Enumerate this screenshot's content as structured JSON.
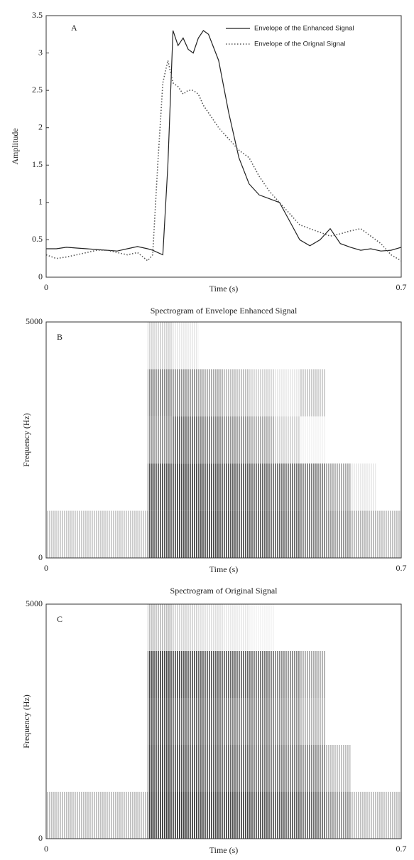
{
  "chart_data": [
    {
      "type": "line",
      "annotation": "A",
      "xlabel": "Time (s)",
      "ylabel": "Amplitude",
      "xlim": [
        0,
        0.7
      ],
      "ylim": [
        0,
        3.5
      ],
      "xticks": [
        0,
        0.7
      ],
      "yticks": [
        0,
        0.5,
        1,
        1.5,
        2,
        2.5,
        3,
        3.5
      ],
      "legend": "upper right",
      "x": [
        0,
        0.02,
        0.04,
        0.06,
        0.08,
        0.1,
        0.12,
        0.14,
        0.16,
        0.18,
        0.2,
        0.21,
        0.22,
        0.23,
        0.24,
        0.25,
        0.26,
        0.27,
        0.28,
        0.29,
        0.3,
        0.31,
        0.32,
        0.34,
        0.36,
        0.38,
        0.4,
        0.42,
        0.44,
        0.46,
        0.48,
        0.5,
        0.52,
        0.54,
        0.56,
        0.58,
        0.6,
        0.62,
        0.64,
        0.66,
        0.68,
        0.7
      ],
      "series": [
        {
          "name": "Envelope of the Enhanced Signal",
          "color": "#222222",
          "dash": "solid",
          "values": [
            0.38,
            0.38,
            0.4,
            0.39,
            0.38,
            0.37,
            0.36,
            0.35,
            0.38,
            0.41,
            0.38,
            0.36,
            0.33,
            0.3,
            1.5,
            3.3,
            3.1,
            3.2,
            3.05,
            3.0,
            3.2,
            3.3,
            3.25,
            2.9,
            2.2,
            1.6,
            1.25,
            1.1,
            1.05,
            1.0,
            0.75,
            0.5,
            0.42,
            0.5,
            0.65,
            0.45,
            0.4,
            0.36,
            0.38,
            0.35,
            0.36,
            0.4
          ]
        },
        {
          "name": "Envelope of the Orignal Signal",
          "color": "#555555",
          "dash": "dotted",
          "values": [
            0.3,
            0.25,
            0.27,
            0.3,
            0.33,
            0.36,
            0.36,
            0.33,
            0.3,
            0.33,
            0.22,
            0.3,
            1.5,
            2.6,
            2.9,
            2.6,
            2.55,
            2.45,
            2.5,
            2.5,
            2.45,
            2.3,
            2.2,
            2.0,
            1.85,
            1.7,
            1.6,
            1.35,
            1.15,
            1.0,
            0.85,
            0.7,
            0.65,
            0.6,
            0.55,
            0.58,
            0.62,
            0.65,
            0.55,
            0.45,
            0.3,
            0.22
          ]
        }
      ]
    },
    {
      "type": "heatmap",
      "title": "Spectrogram of Envelope Enhanced Signal",
      "annotation": "B",
      "xlabel": "Time (s)",
      "ylabel": "Frequency (Hz)",
      "xlim": [
        0,
        0.7
      ],
      "ylim": [
        0,
        5000
      ],
      "xticks": [
        0,
        0.7
      ],
      "yticks": [
        0,
        5000
      ],
      "color": "#2a2a2a",
      "xbins": [
        0,
        0.05,
        0.1,
        0.15,
        0.2,
        0.25,
        0.3,
        0.35,
        0.4,
        0.45,
        0.5,
        0.55,
        0.6,
        0.65,
        0.7
      ],
      "ybins": [
        0,
        1000,
        2000,
        3000,
        4000,
        5000
      ],
      "z": [
        [
          0.25,
          0.25,
          0.25,
          0.25,
          0.8,
          0.85,
          0.85,
          0.8,
          0.75,
          0.7,
          0.6,
          0.5,
          0.35,
          0.3
        ],
        [
          0,
          0,
          0,
          0,
          0.8,
          0.85,
          0.8,
          0.75,
          0.7,
          0.65,
          0.6,
          0.4,
          0.1,
          0
        ],
        [
          0,
          0,
          0,
          0,
          0.5,
          0.7,
          0.6,
          0.5,
          0.4,
          0.2,
          0.05,
          0,
          0,
          0
        ],
        [
          0,
          0,
          0,
          0,
          0.55,
          0.5,
          0.4,
          0.3,
          0.2,
          0.1,
          0.25,
          0,
          0,
          0
        ],
        [
          0,
          0,
          0,
          0,
          0.2,
          0.1,
          0,
          0,
          0,
          0,
          0,
          0,
          0,
          0
        ]
      ]
    },
    {
      "type": "heatmap",
      "title": "Spectrogram of Original Signal",
      "annotation": "C",
      "xlabel": "Time (s)",
      "ylabel": "Frequency (Hz)",
      "xlim": [
        0,
        0.7
      ],
      "ylim": [
        0,
        5000
      ],
      "xticks": [
        0,
        0.7
      ],
      "yticks": [
        0,
        5000
      ],
      "color": "#2a2a2a",
      "xbins": [
        0,
        0.05,
        0.1,
        0.15,
        0.2,
        0.25,
        0.3,
        0.35,
        0.4,
        0.45,
        0.5,
        0.55,
        0.6,
        0.65,
        0.7
      ],
      "ybins": [
        0,
        1000,
        2000,
        3000,
        4000,
        5000
      ],
      "z": [
        [
          0.3,
          0.3,
          0.3,
          0.3,
          0.9,
          0.9,
          0.85,
          0.85,
          0.8,
          0.75,
          0.7,
          0.5,
          0.3,
          0.3
        ],
        [
          0,
          0,
          0,
          0,
          0.85,
          0.8,
          0.75,
          0.7,
          0.65,
          0.6,
          0.55,
          0.3,
          0,
          0
        ],
        [
          0,
          0,
          0,
          0,
          0.8,
          0.7,
          0.7,
          0.6,
          0.6,
          0.5,
          0.35,
          0,
          0,
          0
        ],
        [
          0,
          0,
          0,
          0,
          0.85,
          0.8,
          0.75,
          0.7,
          0.65,
          0.55,
          0.4,
          0,
          0,
          0
        ],
        [
          0,
          0,
          0,
          0,
          0.3,
          0.2,
          0.15,
          0.1,
          0.05,
          0,
          0,
          0,
          0,
          0
        ]
      ]
    }
  ]
}
